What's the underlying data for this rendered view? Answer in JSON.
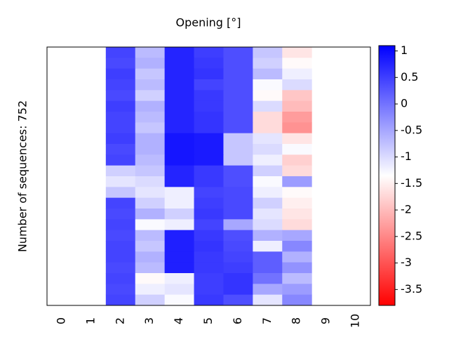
{
  "chart_data": {
    "type": "heatmap",
    "title": "Opening [°]",
    "y_label": "Number of sequences: 752",
    "categories": [
      "0",
      "1",
      "2",
      "3",
      "4",
      "5",
      "6",
      "7",
      "8",
      "9",
      "10"
    ],
    "rows": [
      [
        null,
        null,
        0.45,
        -0.7,
        0.75,
        0.5,
        0.35,
        -0.8,
        -1.6,
        null,
        null
      ],
      [
        null,
        null,
        0.4,
        -0.6,
        0.75,
        0.55,
        0.35,
        -0.9,
        -1.4,
        null,
        null
      ],
      [
        null,
        null,
        0.5,
        -0.8,
        0.75,
        0.6,
        0.35,
        -0.7,
        -1.2,
        null,
        null
      ],
      [
        null,
        null,
        0.45,
        -0.7,
        0.75,
        0.45,
        0.35,
        -1.3,
        -1.0,
        null,
        null
      ],
      [
        null,
        null,
        0.4,
        -0.9,
        0.75,
        0.55,
        0.35,
        -1.4,
        -1.9,
        null,
        null
      ],
      [
        null,
        null,
        0.5,
        -0.6,
        0.75,
        0.55,
        0.35,
        -1.0,
        -2.0,
        null,
        null
      ],
      [
        null,
        null,
        0.45,
        -0.7,
        0.75,
        0.6,
        0.35,
        -1.7,
        -2.3,
        null,
        null
      ],
      [
        null,
        null,
        0.45,
        -0.8,
        0.75,
        0.6,
        0.35,
        -1.7,
        -2.4,
        null,
        null
      ],
      [
        null,
        null,
        0.5,
        -0.6,
        0.9,
        0.85,
        -0.8,
        -1.1,
        -1.6,
        null,
        null
      ],
      [
        null,
        null,
        0.4,
        -0.6,
        0.9,
        0.85,
        -0.8,
        -1.0,
        -1.3,
        null,
        null
      ],
      [
        null,
        null,
        0.45,
        -0.7,
        0.9,
        0.85,
        -0.8,
        -1.2,
        -1.8,
        null,
        null
      ],
      [
        null,
        null,
        -0.9,
        -0.8,
        0.75,
        0.55,
        0.35,
        -0.9,
        -1.7,
        null,
        null
      ],
      [
        null,
        null,
        -1.1,
        -1.0,
        0.75,
        0.55,
        0.35,
        -1.3,
        -0.4,
        null,
        null
      ],
      [
        null,
        null,
        -0.8,
        -1.1,
        -1.2,
        0.45,
        0.4,
        -1.2,
        -1.4,
        null,
        null
      ],
      [
        null,
        null,
        0.45,
        -0.9,
        -1.2,
        0.5,
        0.4,
        -0.9,
        -1.5,
        null,
        null
      ],
      [
        null,
        null,
        0.4,
        -0.6,
        -0.9,
        0.55,
        0.4,
        -1.1,
        -1.6,
        null,
        null
      ],
      [
        null,
        null,
        0.45,
        -1.3,
        -1.2,
        0.45,
        -0.5,
        -1.0,
        -1.7,
        null,
        null
      ],
      [
        null,
        null,
        0.4,
        -0.7,
        0.8,
        0.55,
        0.35,
        -0.6,
        -0.5,
        null,
        null
      ],
      [
        null,
        null,
        0.45,
        -0.8,
        0.8,
        0.6,
        0.4,
        -1.2,
        -0.2,
        null,
        null
      ],
      [
        null,
        null,
        0.45,
        -0.6,
        0.8,
        0.55,
        0.45,
        0.2,
        -0.6,
        null,
        null
      ],
      [
        null,
        null,
        0.4,
        -0.7,
        0.8,
        0.55,
        0.5,
        0.2,
        -0.3,
        null,
        null
      ],
      [
        null,
        null,
        0.45,
        -1.4,
        -1.2,
        0.5,
        0.6,
        0.0,
        -0.7,
        null,
        null
      ],
      [
        null,
        null,
        0.4,
        -1.2,
        -1.1,
        0.5,
        0.6,
        -0.5,
        -0.4,
        null,
        null
      ],
      [
        null,
        null,
        0.45,
        -0.9,
        -1.3,
        0.55,
        0.35,
        -1.1,
        -0.2,
        null,
        null
      ]
    ],
    "zlim": [
      -3.8,
      1.1
    ],
    "zticks": [
      1,
      0.5,
      0,
      -0.5,
      -1,
      -1.5,
      -2,
      -2.5,
      -3,
      -3.5
    ],
    "colormap": [
      "#ff0000",
      "#ffffff",
      "#0000ff"
    ]
  }
}
